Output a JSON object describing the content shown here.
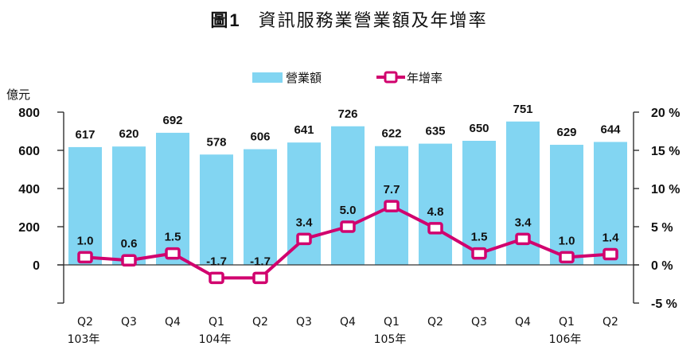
{
  "title": {
    "figure_label": "圖1",
    "text": "資訊服務業營業額及年增率"
  },
  "chart_data": {
    "type": "bar",
    "title": "圖1 資訊服務業營業額及年增率",
    "categories": [
      "Q2",
      "Q3",
      "Q4",
      "Q1",
      "Q2",
      "Q3",
      "Q4",
      "Q1",
      "Q2",
      "Q3",
      "Q4",
      "Q1",
      "Q2"
    ],
    "year_groups": [
      {
        "label": "103年",
        "start_index": 0
      },
      {
        "label": "104年",
        "start_index": 3
      },
      {
        "label": "105年",
        "start_index": 7
      },
      {
        "label": "106年",
        "start_index": 11
      }
    ],
    "series": [
      {
        "name": "營業額",
        "type": "bar",
        "axis": "left",
        "color": "#82D5F2",
        "values": [
          617,
          620,
          692,
          578,
          606,
          641,
          726,
          622,
          635,
          650,
          751,
          629,
          644
        ],
        "labels": [
          "617",
          "620",
          "692",
          "578",
          "606",
          "641",
          "726",
          "622",
          "635",
          "650",
          "751",
          "629",
          "644"
        ]
      },
      {
        "name": "年增率",
        "type": "line",
        "axis": "right",
        "color": "#D1006E",
        "marker": "square",
        "values": [
          1.0,
          0.6,
          1.5,
          -1.7,
          -1.7,
          3.4,
          5.0,
          7.7,
          4.8,
          1.5,
          3.4,
          1.0,
          1.4
        ],
        "labels": [
          "1.0",
          "0.6",
          "1.5",
          "-1.7",
          "-1.7",
          "3.4",
          "5.0",
          "7.7",
          "4.8",
          "1.5",
          "3.4",
          "1.0",
          "1.4"
        ]
      }
    ],
    "left_axis": {
      "unit_label": "億元",
      "ylim": [
        -200,
        800
      ],
      "ticks": [
        800,
        600,
        400,
        200,
        0
      ],
      "tick_labels": [
        "800",
        "600",
        "400",
        "200",
        "0"
      ]
    },
    "right_axis": {
      "ylim": [
        -5,
        20
      ],
      "ticks": [
        20,
        15,
        10,
        5,
        0,
        -5
      ],
      "tick_labels": [
        "20 %",
        "15 %",
        "10 %",
        "5 %",
        "0 %",
        "-5 %"
      ]
    },
    "legend": {
      "placement": "top-center",
      "items": [
        {
          "label": "營業額",
          "kind": "bar"
        },
        {
          "label": "年增率",
          "kind": "line"
        }
      ]
    },
    "grid": false
  }
}
